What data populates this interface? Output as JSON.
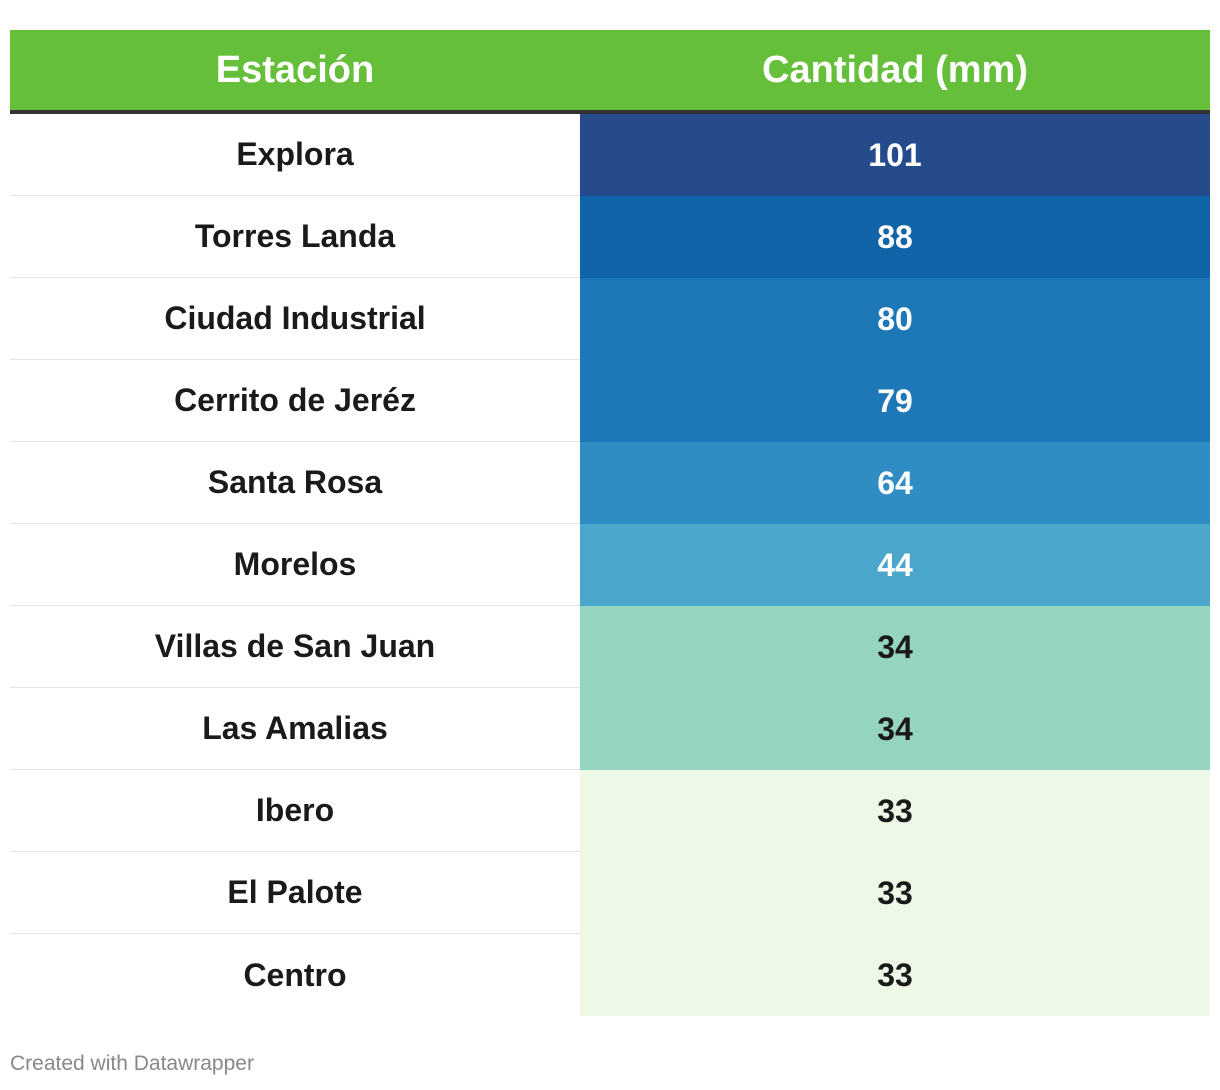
{
  "chart_data": {
    "type": "table",
    "columns": [
      "Estación",
      "Cantidad (mm)"
    ],
    "rows": [
      {
        "station": "Explora",
        "value": 101,
        "color": "#254b8c",
        "text_color": "#ffffff"
      },
      {
        "station": "Torres Landa",
        "value": 88,
        "color": "#1264a9",
        "text_color": "#ffffff"
      },
      {
        "station": "Ciudad Industrial",
        "value": 80,
        "color": "#1e78b7",
        "text_color": "#ffffff"
      },
      {
        "station": "Cerrito de Jeréz",
        "value": 79,
        "color": "#1e78b7",
        "text_color": "#ffffff"
      },
      {
        "station": "Santa Rosa",
        "value": 64,
        "color": "#2f8dc3",
        "text_color": "#ffffff"
      },
      {
        "station": "Morelos",
        "value": 44,
        "color": "#4aa7cb",
        "text_color": "#ffffff"
      },
      {
        "station": "Villas de San Juan",
        "value": 34,
        "color": "#94d4c1",
        "text_color": "#1a1a1a"
      },
      {
        "station": "Las Amalias",
        "value": 34,
        "color": "#94d4c1",
        "text_color": "#1a1a1a"
      },
      {
        "station": "Ibero",
        "value": 33,
        "color": "#eef8e6",
        "text_color": "#1a1a1a"
      },
      {
        "station": "El Palote",
        "value": 33,
        "color": "#eef8e6",
        "text_color": "#1a1a1a"
      },
      {
        "station": "Centro",
        "value": 33,
        "color": "#eef8e6",
        "text_color": "#1a1a1a"
      }
    ],
    "header_color": "#66bf3a"
  },
  "footer": {
    "credit": "Created with Datawrapper"
  }
}
